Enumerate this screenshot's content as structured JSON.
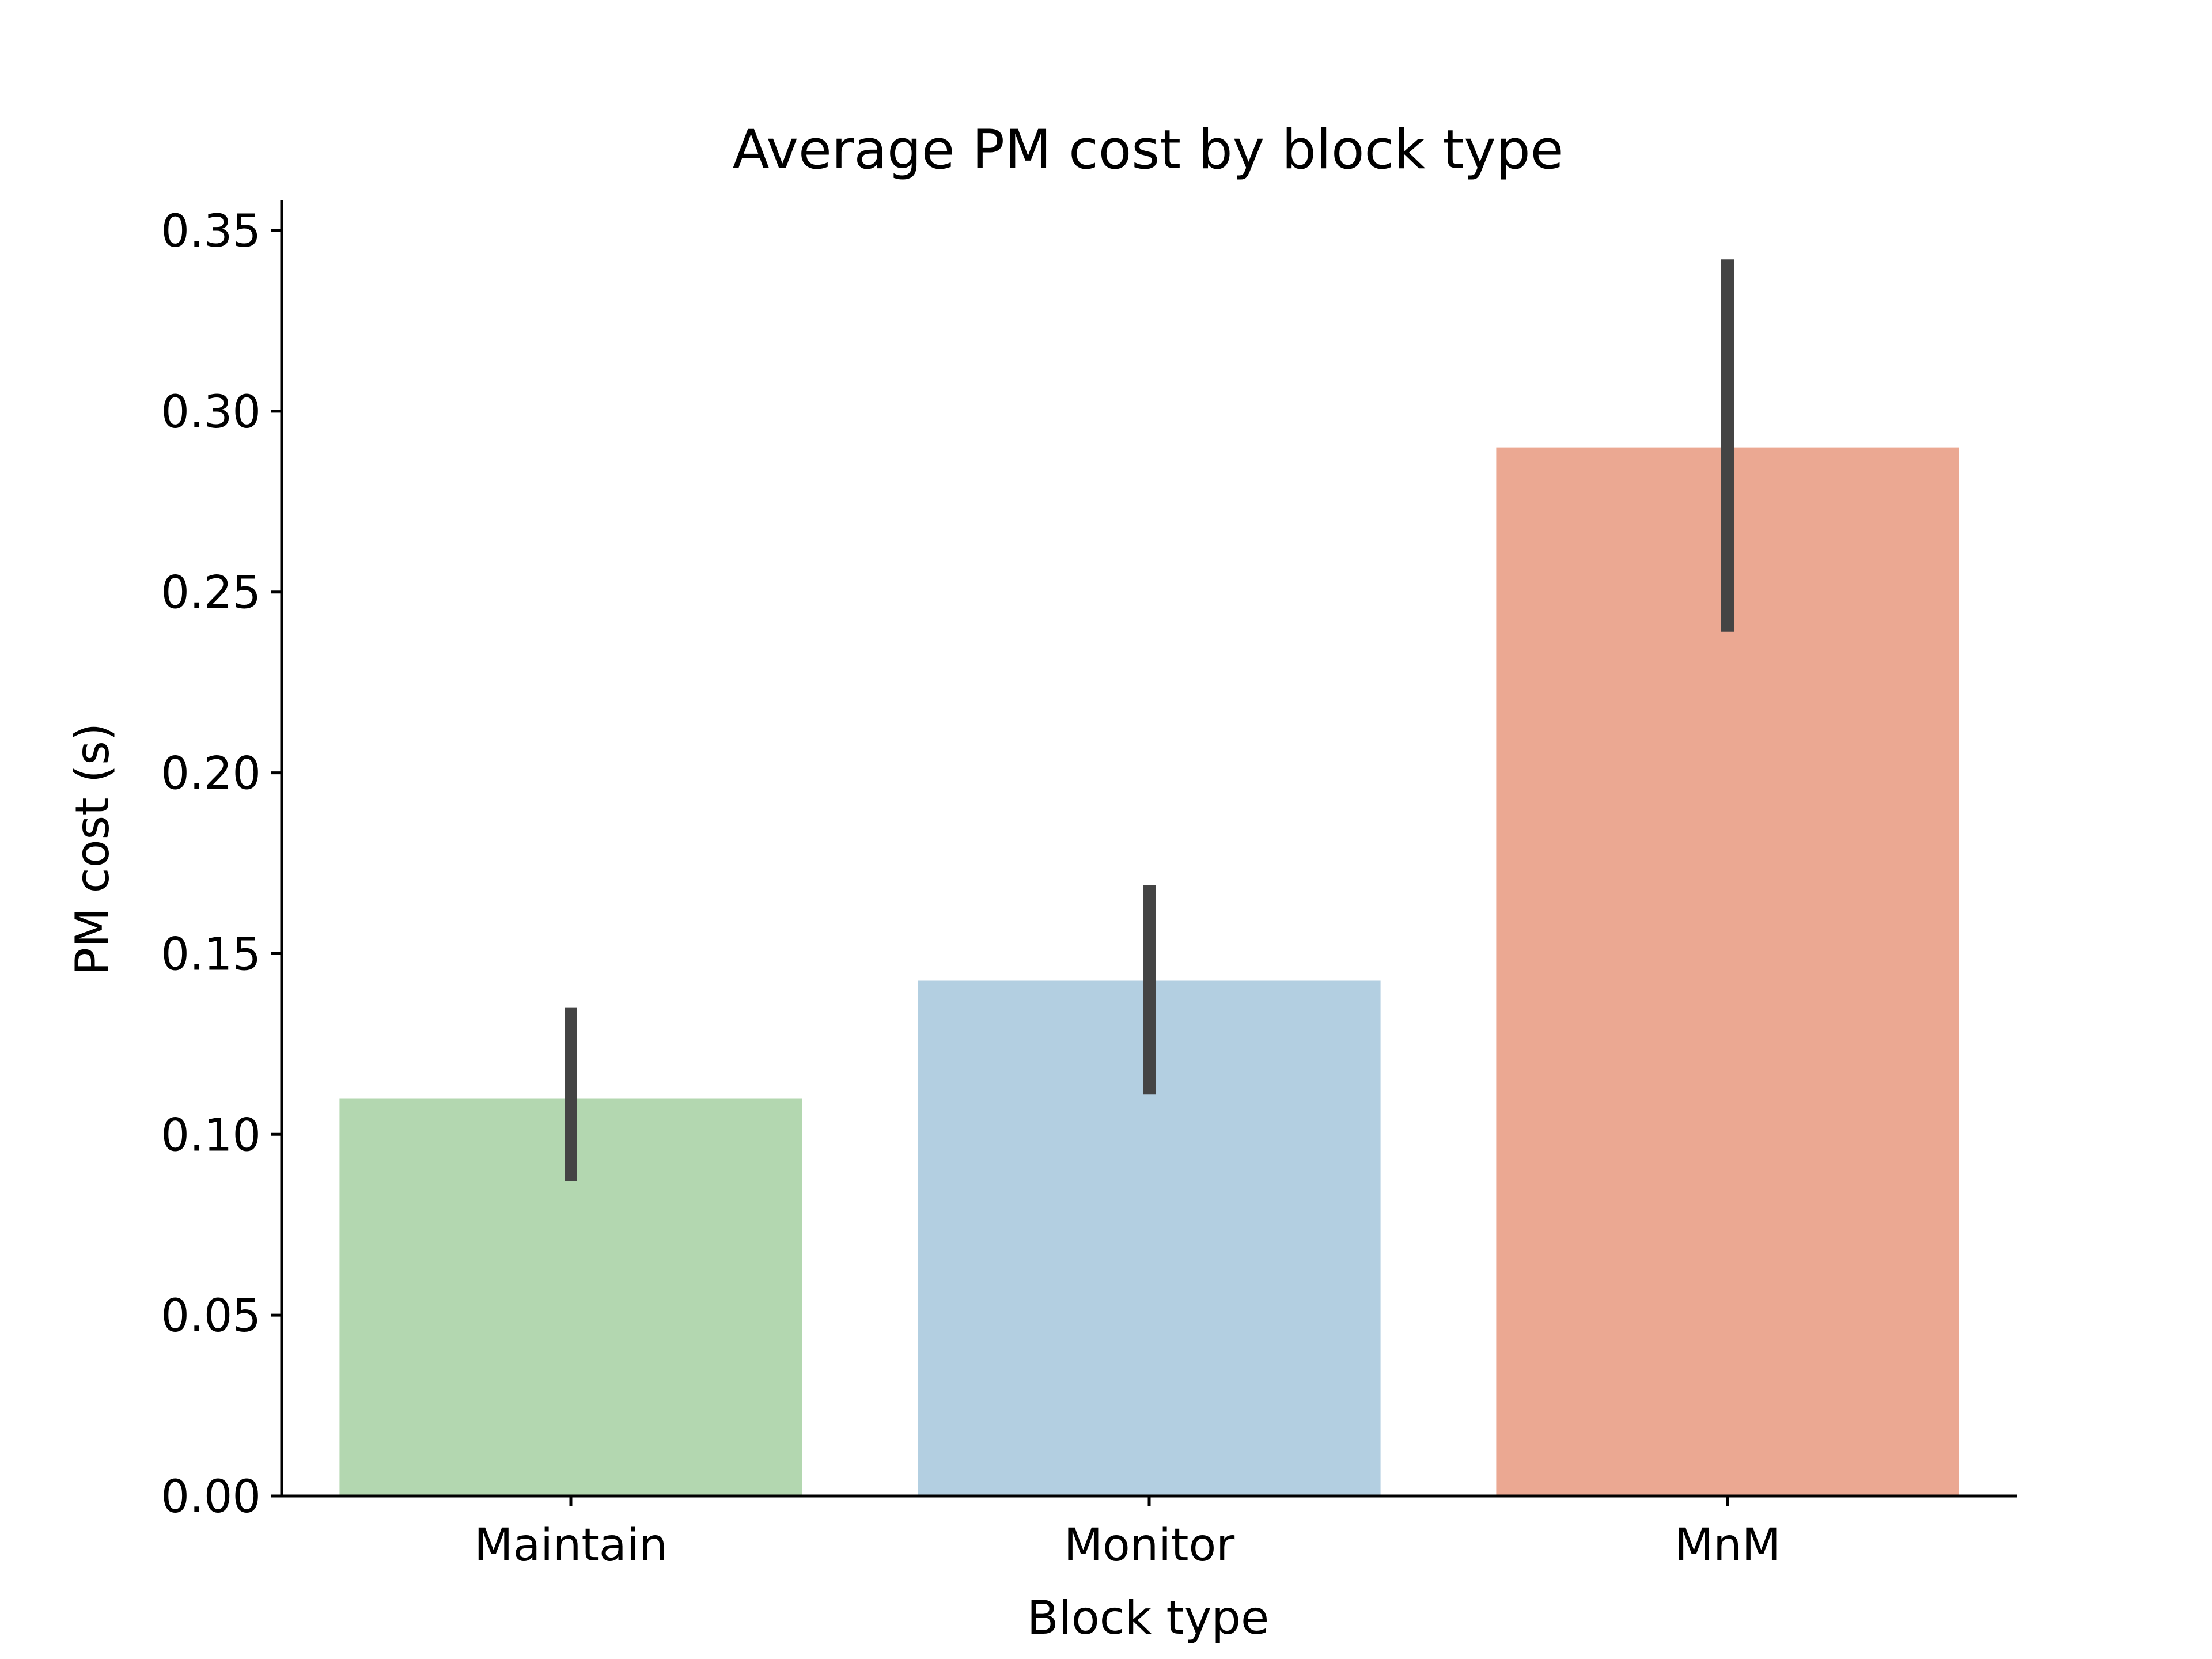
{
  "chart_data": {
    "type": "bar",
    "title": "Average PM cost by block type",
    "xlabel": "Block type",
    "ylabel": "PM cost (s)",
    "categories": [
      "Maintain",
      "Monitor",
      "MnM"
    ],
    "values": [
      0.11,
      0.1425,
      0.29
    ],
    "error_bars": [
      {
        "low": 0.087,
        "high": 0.135
      },
      {
        "low": 0.111,
        "high": 0.169
      },
      {
        "low": 0.239,
        "high": 0.342
      }
    ],
    "colors": [
      "#b3d7b0",
      "#b3cfe1",
      "#eba892"
    ],
    "errorbar_color": "#444444",
    "ylim": [
      0,
      0.35
    ],
    "yticks": [
      0.0,
      0.05,
      0.1,
      0.15,
      0.2,
      0.25,
      0.3,
      0.35
    ],
    "ytick_labels": [
      "0.00",
      "0.05",
      "0.10",
      "0.15",
      "0.20",
      "0.25",
      "0.30",
      "0.35"
    ],
    "grid": false,
    "legend": null
  }
}
